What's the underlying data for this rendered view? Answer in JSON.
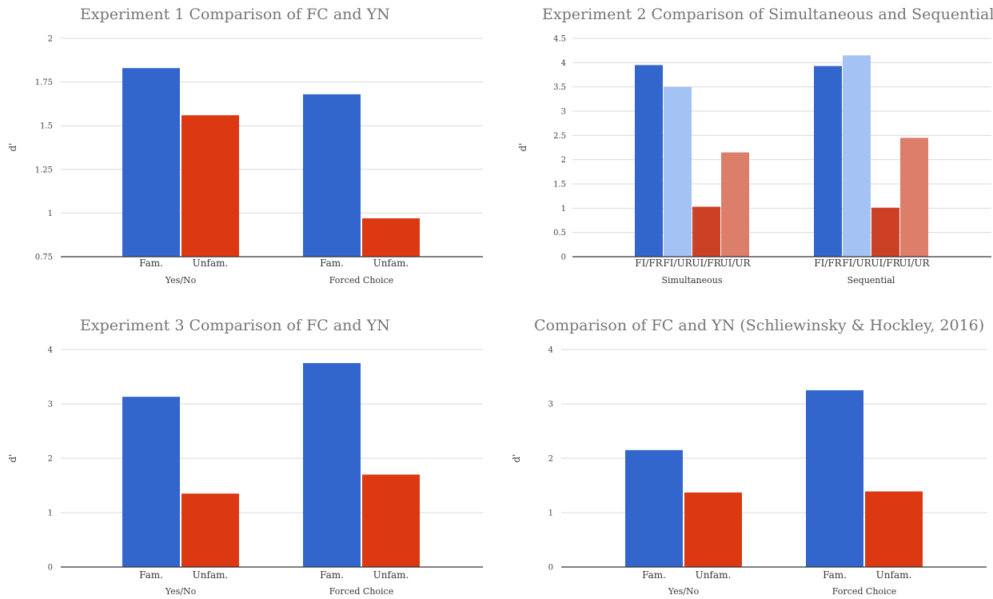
{
  "chart_data": [
    {
      "type": "bar",
      "title": "Experiment 1 Comparison of FC and YN",
      "ylabel": "d'",
      "ylim": [
        0.75,
        2
      ],
      "yticks": [
        0.75,
        1,
        1.25,
        1.5,
        1.75,
        2
      ],
      "ytick_labels": [
        "0.75",
        "1",
        "1.25",
        "1.5",
        "1.75",
        "2"
      ],
      "groups": [
        {
          "name": "Yes/No",
          "bars": [
            {
              "label": "Fam.",
              "value": 1.83,
              "color": "#3366cc"
            },
            {
              "label": "Unfam.",
              "value": 1.56,
              "color": "#dc3912"
            }
          ]
        },
        {
          "name": "Forced Choice",
          "bars": [
            {
              "label": "Fam.",
              "value": 1.68,
              "color": "#3366cc"
            },
            {
              "label": "Unfam.",
              "value": 0.97,
              "color": "#dc3912"
            }
          ]
        }
      ],
      "grid": true
    },
    {
      "type": "bar",
      "title": "Experiment 2 Comparison of Simultaneous and Sequential",
      "ylabel": "d'",
      "ylim": [
        0,
        4.5
      ],
      "yticks": [
        0,
        0.5,
        1,
        1.5,
        2,
        2.5,
        3,
        3.5,
        4,
        4.5
      ],
      "ytick_labels": [
        "0",
        "0.5",
        "1",
        "1.5",
        "2",
        "2.5",
        "3",
        "3.5",
        "4",
        "4.5"
      ],
      "groups": [
        {
          "name": "Simultaneous",
          "bars": [
            {
              "label": "FI/FR",
              "value": 3.95,
              "color": "#3366cc"
            },
            {
              "label": "FI/UR",
              "value": 3.5,
              "color": "#a4c2f4"
            },
            {
              "label": "UI/FR",
              "value": 1.03,
              "color": "#cc4125"
            },
            {
              "label": "UI/UR",
              "value": 2.15,
              "color": "#dd7e6b"
            }
          ]
        },
        {
          "name": "Sequential",
          "bars": [
            {
              "label": "FI/FR",
              "value": 3.93,
              "color": "#3366cc"
            },
            {
              "label": "FI/UR",
              "value": 4.15,
              "color": "#a4c2f4"
            },
            {
              "label": "UI/FR",
              "value": 1.01,
              "color": "#cc4125"
            },
            {
              "label": "UI/UR",
              "value": 2.45,
              "color": "#dd7e6b"
            }
          ]
        }
      ],
      "grid": true
    },
    {
      "type": "bar",
      "title": "Experiment 3 Comparison of FC and YN",
      "ylabel": "d'",
      "ylim": [
        0,
        4
      ],
      "yticks": [
        0,
        1,
        2,
        3,
        4
      ],
      "ytick_labels": [
        "0",
        "1",
        "2",
        "3",
        "4"
      ],
      "groups": [
        {
          "name": "Yes/No",
          "bars": [
            {
              "label": "Fam.",
              "value": 3.13,
              "color": "#3366cc"
            },
            {
              "label": "Unfam.",
              "value": 1.35,
              "color": "#dc3912"
            }
          ]
        },
        {
          "name": "Forced Choice",
          "bars": [
            {
              "label": "Fam.",
              "value": 3.75,
              "color": "#3366cc"
            },
            {
              "label": "Unfam.",
              "value": 1.7,
              "color": "#dc3912"
            }
          ]
        }
      ],
      "grid": true
    },
    {
      "type": "bar",
      "title": "Comparison of FC and YN (Schliewinsky & Hockley, 2016)",
      "ylabel": "d'",
      "ylim": [
        0,
        4
      ],
      "yticks": [
        0,
        1,
        2,
        3,
        4
      ],
      "ytick_labels": [
        "0",
        "1",
        "2",
        "3",
        "4"
      ],
      "groups": [
        {
          "name": "Yes/No",
          "bars": [
            {
              "label": "Fam.",
              "value": 2.15,
              "color": "#3366cc"
            },
            {
              "label": "Unfam.",
              "value": 1.37,
              "color": "#dc3912"
            }
          ]
        },
        {
          "name": "Forced Choice",
          "bars": [
            {
              "label": "Fam.",
              "value": 3.25,
              "color": "#3366cc"
            },
            {
              "label": "Unfam.",
              "value": 1.39,
              "color": "#dc3912"
            }
          ]
        }
      ],
      "grid": true
    }
  ]
}
